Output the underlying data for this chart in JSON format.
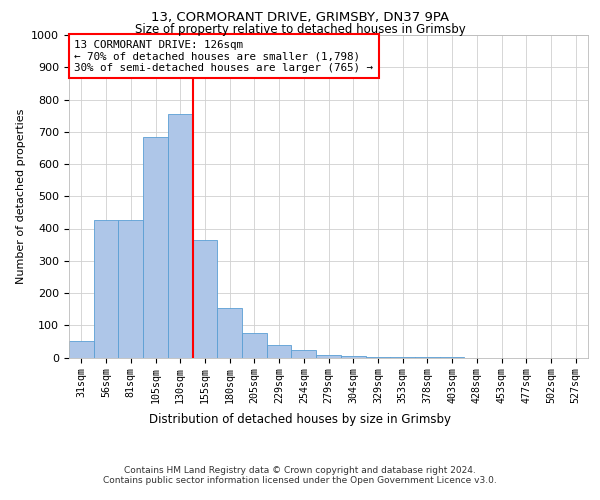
{
  "title1": "13, CORMORANT DRIVE, GRIMSBY, DN37 9PA",
  "title2": "Size of property relative to detached houses in Grimsby",
  "xlabel": "Distribution of detached houses by size in Grimsby",
  "ylabel": "Number of detached properties",
  "categories": [
    "31sqm",
    "56sqm",
    "81sqm",
    "105sqm",
    "130sqm",
    "155sqm",
    "180sqm",
    "205sqm",
    "229sqm",
    "254sqm",
    "279sqm",
    "304sqm",
    "329sqm",
    "353sqm",
    "378sqm",
    "403sqm",
    "428sqm",
    "453sqm",
    "477sqm",
    "502sqm",
    "527sqm"
  ],
  "values": [
    50,
    425,
    425,
    685,
    755,
    365,
    155,
    75,
    38,
    22,
    8,
    4,
    2,
    2,
    1,
    1,
    0,
    0,
    0,
    0,
    0
  ],
  "bar_color": "#aec6e8",
  "bar_edge_color": "#5a9fd4",
  "red_line_x": 4.5,
  "annotation_line1": "13 CORMORANT DRIVE: 126sqm",
  "annotation_line2": "← 70% of detached houses are smaller (1,798)",
  "annotation_line3": "30% of semi-detached houses are larger (765) →",
  "ylim": [
    0,
    1000
  ],
  "yticks": [
    0,
    100,
    200,
    300,
    400,
    500,
    600,
    700,
    800,
    900,
    1000
  ],
  "footnote1": "Contains HM Land Registry data © Crown copyright and database right 2024.",
  "footnote2": "Contains public sector information licensed under the Open Government Licence v3.0.",
  "background_color": "#ffffff",
  "grid_color": "#d0d0d0"
}
